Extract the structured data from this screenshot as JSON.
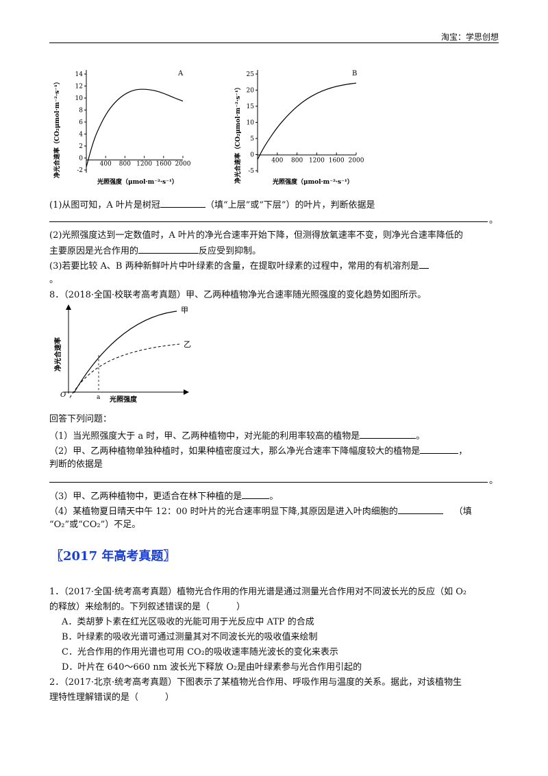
{
  "header": {
    "text": "淘宝：学思创想"
  },
  "charts": {
    "chartA": {
      "type": "line",
      "title": "A",
      "ylabel": "净光合速率（CO₂μmol·m⁻²·s⁻¹）",
      "xlabel": "光照强度（μmol·m⁻²·s⁻¹）",
      "yticks": [
        "14",
        "12",
        "10",
        "8",
        "6",
        "4",
        "2",
        "0",
        "-2"
      ],
      "xticks": [
        "400",
        "800",
        "1200",
        "1600",
        "2000"
      ]
    },
    "chartB": {
      "type": "line",
      "title": "B",
      "ylabel": "净光合速率（CO₂μmol·m⁻²·s⁻¹）",
      "xlabel": "光照强度（μmol·m⁻²·s⁻¹）",
      "yticks": [
        "25",
        "20",
        "15",
        "10",
        "5",
        "0",
        "-5"
      ],
      "xticks": [
        "400",
        "800",
        "1200",
        "1600",
        "2000"
      ]
    },
    "chart8": {
      "type": "line",
      "ylabel": "净光合速率",
      "xlabel": "光照强度",
      "origin": "O",
      "a_label": "a",
      "series": [
        "甲",
        "乙"
      ]
    }
  },
  "chart_data": [
    {
      "type": "line",
      "title": "A",
      "xlabel": "光照强度（μmol·m⁻²·s⁻¹）",
      "ylabel": "净光合速率（CO₂μmol·m⁻²·s⁻¹）",
      "xlim": [
        0,
        2000
      ],
      "ylim": [
        -2,
        14
      ],
      "x": [
        0,
        100,
        200,
        400,
        600,
        800,
        1000,
        1200,
        1400,
        1600,
        1800,
        2000
      ],
      "y": [
        -1.5,
        1.5,
        4,
        7.3,
        9.4,
        10.7,
        11.4,
        11.5,
        11.3,
        10.8,
        10.1,
        9.5
      ]
    },
    {
      "type": "line",
      "title": "B",
      "xlabel": "光照强度（μmol·m⁻²·s⁻¹）",
      "ylabel": "净光合速率（CO₂μmol·m⁻²·s⁻¹）",
      "xlim": [
        0,
        2000
      ],
      "ylim": [
        -5,
        25
      ],
      "x": [
        0,
        100,
        200,
        400,
        600,
        800,
        1000,
        1200,
        1400,
        1600,
        1800,
        2000
      ],
      "y": [
        -1.5,
        1.5,
        4,
        8.5,
        12,
        15,
        17.3,
        19,
        20.3,
        21.2,
        21.8,
        22.2
      ]
    }
  ],
  "content": {
    "q7_1a": "(1)从图可知，A 叶片是树冠",
    "q7_1b": "（填“上层”或“下层”）的叶片，判断依据是",
    "q7_1end": "。",
    "q7_2a": "(2)光照强度达到一定数值时，A 叶片的净光合速率开始下降，但测得放氧速率不变，则净光合速率降低的",
    "q7_2b": "主要原因是光合作用的",
    "q7_2c": "反应受到抑制。",
    "q7_3a": "(3)若要比较 A、B 两种新鲜叶片中叶绿素的含量，在提取叶绿素的过程中，常用的有机溶剂是",
    "q7_3end": "。",
    "q8_title": "8．（2018·全国·校联考高考真题）甲、乙两种植物净光合速率随光照强度的变化趋势如图所示。",
    "q8_prompt": "回答下列问题：",
    "q8_1a": "（1）当光照强度大于 a 时，甲、乙两种植物中，对光能的利用率较高的植物是",
    "q8_1end": "。",
    "q8_2a": "（2）甲、乙两种植物单独种植时，如果种植密度过大，那么净光合速率下降幅度较大的植物是",
    "q8_2end": "，",
    "q8_2b": "判断的依据是",
    "q8_2end2": "。",
    "q8_3a": "（3）甲、乙两种植物中，更适合在林下种植的是",
    "q8_3end": "。",
    "q8_4a": "（4）某植物夏日晴天中午 12：00 时叶片的光合速率明显下降,其原因是进入叶肉细胞的",
    "q8_4b": "（填",
    "q8_4c": "“O₂”或“CO₂”）不足。",
    "section_title": "〖2017 年高考真题〗",
    "s1_q1a": "1．（2017·全国·统考高考真题）植物光合作用的作用光谱是通过测量光合作用对不同波长光的反应（如 O₂",
    "s1_q1b": "的释放）来绘制的。下列叙述错误的是（　　　）",
    "s1_optA": "A．类胡萝卜素在红光区吸收的光能可用于光反应中 ATP 的合成",
    "s1_optB": "B．叶绿素的吸收光谱可通过测量其对不同波长光的吸收值来绘制",
    "s1_optC": "C．光合作用的作用光谱也可用 CO₂的吸收速率随光波长的变化来表示",
    "s1_optD": "D．叶片在 640～660 nm 波长光下释放 O₂是由叶绿素参与光合作用引起的",
    "s1_q2a": "2．（2017·北京·统考高考真题）下图表示了某植物光合作用、呼吸作用与温度的关系。据此，对该植物生",
    "s1_q2b": "理特性理解错误的是（　　　）"
  }
}
